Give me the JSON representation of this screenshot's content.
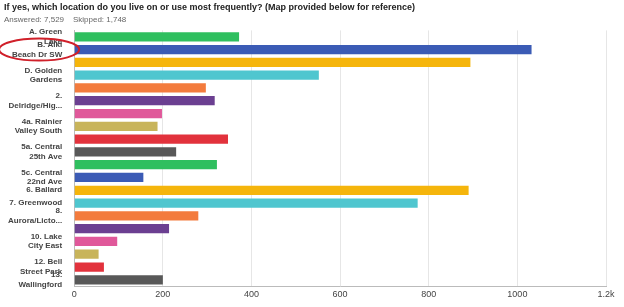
{
  "chart_data": {
    "type": "bar",
    "orientation": "horizontal",
    "title": "If yes, which location do you live on or use most frequently? (Map provided below for reference)",
    "subtitle": "Answered: 7,529    Skipped: 1,748",
    "categories": [
      "A. Green Lake",
      "B. Alki Beach Dr SW",
      null,
      "D. Golden Gardens",
      null,
      "2. Delridge/Hig...",
      null,
      "4a. Rainier Valley South",
      null,
      "5a. Central 25th Ave",
      null,
      "5c. Central 22nd Ave",
      "6. Ballard",
      "7. Greenwood",
      "8. Aurora/Licto...",
      null,
      "10. Lake City East",
      null,
      "12. Bell Street Park",
      "13. Wallingford"
    ],
    "values": [
      372,
      1032,
      894,
      552,
      297,
      317,
      198,
      188,
      347,
      230,
      322,
      156,
      890,
      775,
      280,
      214,
      97,
      55,
      67,
      200
    ],
    "colors": [
      "#2fbf5f",
      "#3b5bb5",
      "#f5b50c",
      "#4fc6cf",
      "#f37b3d",
      "#6b3f91",
      "#e0589a",
      "#c8b45a",
      "#e2323c",
      "#585858",
      "#2fbf5f",
      "#3b5bb5",
      "#f5b50c",
      "#4fc6cf",
      "#f37b3d",
      "#6b3f91",
      "#e0589a",
      "#c8b45a",
      "#e2323c",
      "#585858"
    ],
    "xlim": [
      0,
      1200
    ],
    "xticks": [
      0,
      200,
      400,
      600,
      800,
      1000,
      {
        "value": 1200,
        "label": "1.2k"
      }
    ],
    "grid": true
  }
}
